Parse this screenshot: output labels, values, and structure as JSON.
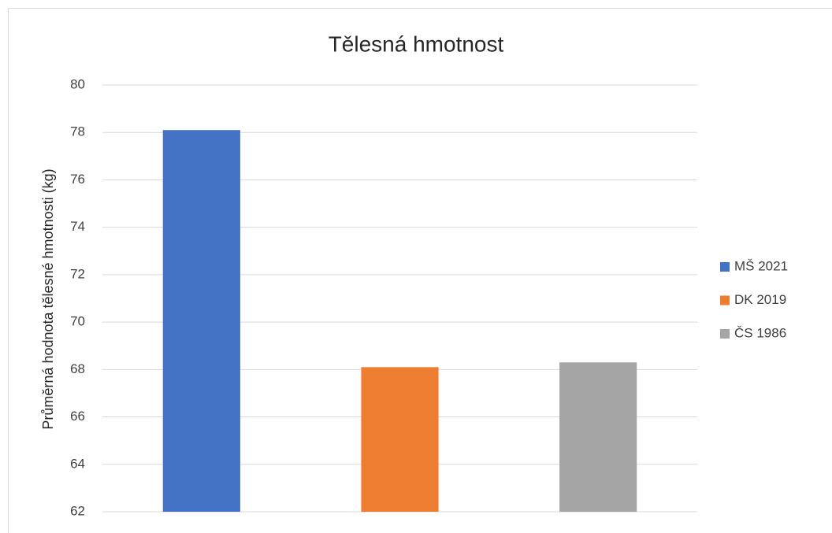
{
  "chart_data": {
    "type": "bar",
    "title": "Tělesná hmotnost",
    "y_label": "Průměrná hodnota tělesné hmotnosti (kg)",
    "series": [
      {
        "name": "MŠ 2021",
        "color": "#4472c4",
        "values": [
          78.1
        ]
      },
      {
        "name": "DK 2019",
        "color": "#ed7d31",
        "values": [
          68.1
        ]
      },
      {
        "name": "ČS 1986",
        "color": "#a5a5a5",
        "values": [
          68.3
        ]
      }
    ],
    "ylim": [
      62,
      80
    ],
    "yticks": [
      62,
      64,
      66,
      68,
      70,
      72,
      74,
      76,
      78,
      80
    ],
    "grid": true,
    "legend": "right"
  }
}
